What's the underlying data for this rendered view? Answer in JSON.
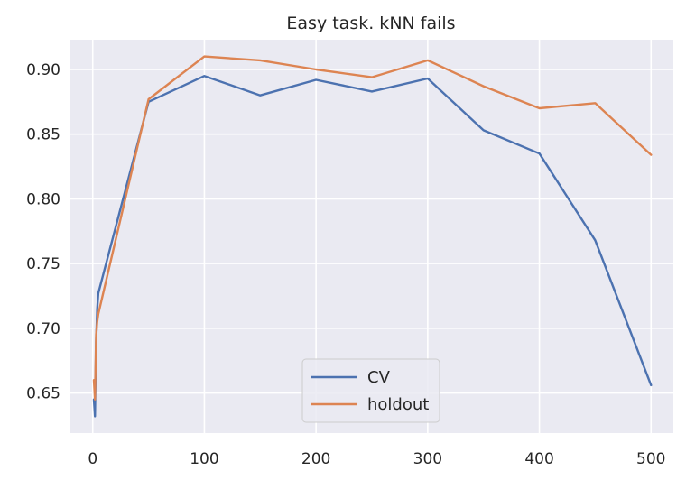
{
  "chart_data": {
    "type": "line",
    "title": "Easy task. kNN fails",
    "xlabel": "",
    "ylabel": "",
    "xlim": [
      -20,
      520
    ],
    "ylim": [
      0.619,
      0.923
    ],
    "xticks": [
      0,
      100,
      200,
      300,
      400,
      500
    ],
    "xtick_labels": [
      "0",
      "100",
      "200",
      "300",
      "400",
      "500"
    ],
    "yticks": [
      0.65,
      0.7,
      0.75,
      0.8,
      0.85,
      0.9
    ],
    "ytick_labels": [
      "0.65",
      "0.70",
      "0.75",
      "0.80",
      "0.85",
      "0.90"
    ],
    "grid": true,
    "legend_position": "lower-center",
    "background_color": "#eaeaf2",
    "series": [
      {
        "name": "CV",
        "color": "#4c72b0",
        "x": [
          1,
          2,
          3,
          4,
          5,
          50,
          100,
          150,
          200,
          250,
          300,
          350,
          400,
          450,
          500
        ],
        "y": [
          0.645,
          0.632,
          0.69,
          0.715,
          0.727,
          0.875,
          0.895,
          0.88,
          0.892,
          0.883,
          0.893,
          0.853,
          0.835,
          0.768,
          0.656
        ]
      },
      {
        "name": "holdout",
        "color": "#dd8452",
        "x": [
          1,
          2,
          3,
          4,
          5,
          50,
          100,
          150,
          200,
          250,
          300,
          350,
          400,
          450,
          500
        ],
        "y": [
          0.66,
          0.645,
          0.695,
          0.705,
          0.711,
          0.877,
          0.91,
          0.907,
          0.9,
          0.894,
          0.907,
          0.887,
          0.87,
          0.874,
          0.834
        ]
      }
    ]
  }
}
